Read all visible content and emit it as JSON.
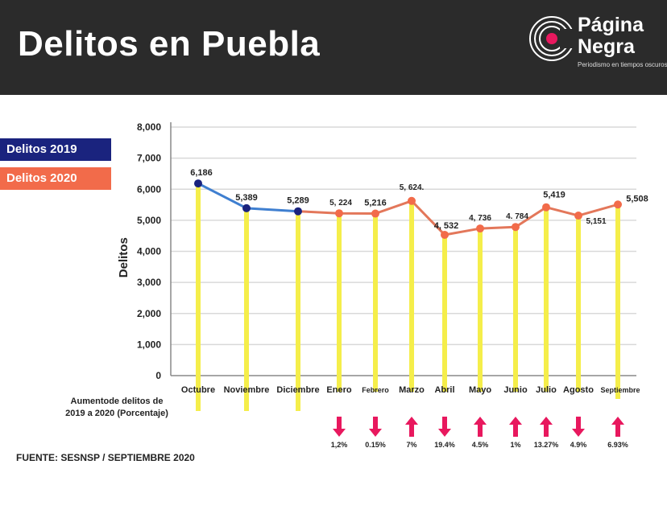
{
  "header": {
    "title": "Delitos en Puebla"
  },
  "logo": {
    "line1": "Página",
    "line2": "Negra",
    "tagline": "Periodismo en tiempos oscuros",
    "icon": "record-disc-icon"
  },
  "legend": [
    {
      "label": "Delitos 2019",
      "color": "#1a237e"
    },
    {
      "label": "Delitos 2020",
      "color": "#f26b4a"
    }
  ],
  "source": "FUENTE: SESNSP / SEPTIEMBRE 2020",
  "percent_caption": {
    "line1": "Aumentode delitos de",
    "line2": "2019 a 2020 (Porcentaje)"
  },
  "chart_data": {
    "type": "line",
    "ylabel": "Delitos",
    "ylim": [
      0,
      8000
    ],
    "yticks": [
      "0",
      "1,000",
      "2,000",
      "3,000",
      "4,000",
      "5,000",
      "6,000",
      "7,000",
      "8,000"
    ],
    "grid": true,
    "categories": [
      "Octubre",
      "Noviembre",
      "Diciembre",
      "Enero",
      "Febrero",
      "Marzo",
      "Abril",
      "Mayo",
      "Junio",
      "Julio",
      "Agosto",
      "Septiembre"
    ],
    "series": [
      {
        "name": "Delitos 2019",
        "color": "#1a237e",
        "line_color": "#3f7fd0",
        "values": [
          6186,
          5389,
          5289,
          null,
          null,
          null,
          null,
          null,
          null,
          null,
          null,
          null
        ],
        "labels": [
          "6,186",
          "5,389",
          "5,289",
          "",
          "",
          "",
          "",
          "",
          "",
          "",
          "",
          ""
        ]
      },
      {
        "name": "Delitos 2020",
        "color": "#f26b4a",
        "line_color": "#e3775a",
        "values": [
          null,
          null,
          null,
          5224,
          5216,
          5624,
          4532,
          4736,
          4784,
          5419,
          5151,
          5508
        ],
        "labels": [
          "",
          "",
          "",
          "5, 224",
          "5,216",
          "5, 624.",
          "4, 532",
          "4, 736",
          "4. 784",
          "5,419",
          "5,151",
          "5,508"
        ]
      }
    ],
    "percent_change": [
      {
        "month": "Enero",
        "direction": "down",
        "label": "1,2%"
      },
      {
        "month": "Febrero",
        "direction": "down",
        "label": "0.15%"
      },
      {
        "month": "Marzo",
        "direction": "up",
        "label": "7%"
      },
      {
        "month": "Abril",
        "direction": "down",
        "label": "19.4%"
      },
      {
        "month": "Mayo",
        "direction": "up",
        "label": "4.5%"
      },
      {
        "month": "Junio",
        "direction": "up",
        "label": "1%"
      },
      {
        "month": "Julio",
        "direction": "up",
        "label": "13.27%"
      },
      {
        "month": "Agosto",
        "direction": "down",
        "label": "4.9%"
      },
      {
        "month": "Septiembre",
        "direction": "up",
        "label": "6.93%"
      }
    ],
    "drop_line_color": "#f5ee4a",
    "arrow_color": "#e8185e"
  }
}
